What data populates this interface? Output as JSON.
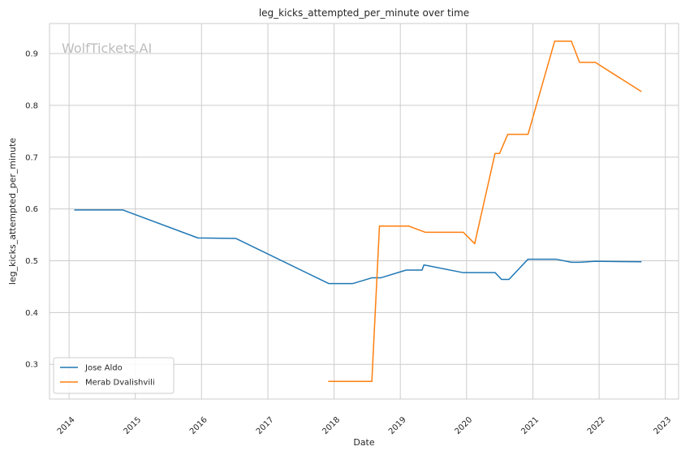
{
  "chart_data": {
    "type": "line",
    "title": "leg_kicks_attempted_per_minute over time",
    "xlabel": "Date",
    "ylabel": "leg_kicks_attempted_per_minute",
    "watermark": "WolfTickets.AI",
    "xlim": [
      "2013-09-15",
      "2023-03-15"
    ],
    "ylim": [
      0.233,
      0.958
    ],
    "x_ticks": [
      "2014",
      "2015",
      "2016",
      "2017",
      "2018",
      "2019",
      "2020",
      "2021",
      "2022",
      "2023"
    ],
    "y_ticks": [
      0.3,
      0.4,
      0.5,
      0.6,
      0.7,
      0.8,
      0.9
    ],
    "grid": true,
    "legend_position": "bottom-left",
    "series": [
      {
        "name": "Jose Aldo",
        "color": "#1f77b4",
        "points": [
          [
            "2014-02-01",
            0.598
          ],
          [
            "2014-10-25",
            0.598
          ],
          [
            "2015-12-12",
            0.544
          ],
          [
            "2016-07-09",
            0.543
          ],
          [
            "2017-12-02",
            0.456
          ],
          [
            "2018-04-15",
            0.456
          ],
          [
            "2018-07-28",
            0.467
          ],
          [
            "2018-09-15",
            0.467
          ],
          [
            "2019-02-02",
            0.482
          ],
          [
            "2019-05-01",
            0.482
          ],
          [
            "2019-05-11",
            0.492
          ],
          [
            "2019-12-14",
            0.477
          ],
          [
            "2020-06-07",
            0.477
          ],
          [
            "2020-07-12",
            0.464
          ],
          [
            "2020-08-22",
            0.464
          ],
          [
            "2020-12-05",
            0.503
          ],
          [
            "2021-05-08",
            0.503
          ],
          [
            "2021-08-01",
            0.497
          ],
          [
            "2021-09-15",
            0.497
          ],
          [
            "2021-12-11",
            0.499
          ],
          [
            "2022-08-20",
            0.498
          ]
        ]
      },
      {
        "name": "Merab Dvalishvili",
        "color": "#ff7f0e",
        "points": [
          [
            "2017-12-02",
            0.267
          ],
          [
            "2018-07-28",
            0.267
          ],
          [
            "2018-09-08",
            0.567
          ],
          [
            "2019-02-16",
            0.567
          ],
          [
            "2019-05-18",
            0.555
          ],
          [
            "2019-12-14",
            0.555
          ],
          [
            "2020-02-15",
            0.533
          ],
          [
            "2020-06-06",
            0.707
          ],
          [
            "2020-07-01",
            0.707
          ],
          [
            "2020-08-15",
            0.744
          ],
          [
            "2020-12-05",
            0.744
          ],
          [
            "2021-05-01",
            0.924
          ],
          [
            "2021-08-01",
            0.924
          ],
          [
            "2021-09-15",
            0.883
          ],
          [
            "2021-12-11",
            0.883
          ],
          [
            "2022-08-20",
            0.827
          ]
        ]
      }
    ]
  }
}
